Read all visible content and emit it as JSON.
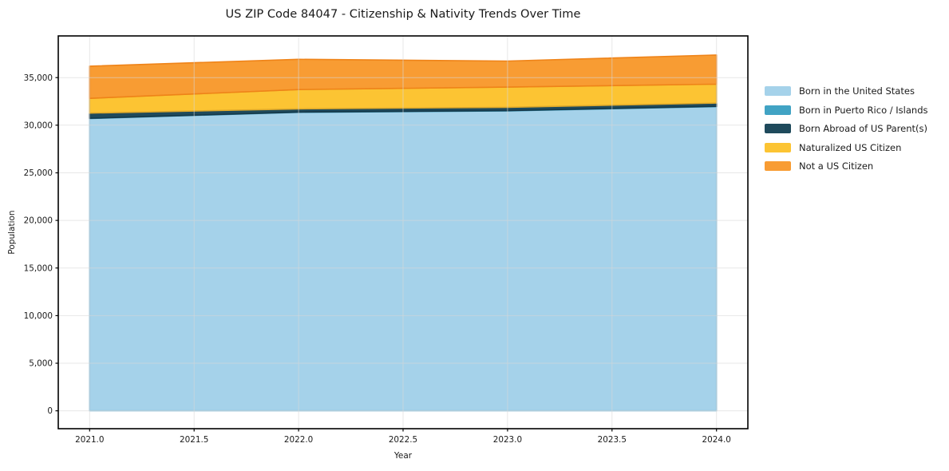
{
  "title": "US ZIP Code 84047 - Citizenship & Nativity Trends Over Time",
  "chart_data": {
    "type": "area",
    "stacked": true,
    "title": "US ZIP Code 84047 - Citizenship & Nativity Trends Over Time",
    "xlabel": "Year",
    "ylabel": "Population",
    "grid": true,
    "legend_position": "right-outside",
    "x": [
      2021,
      2022,
      2023,
      2024
    ],
    "xlim": [
      2020.85,
      2024.15
    ],
    "ylim": [
      -1875,
      39375
    ],
    "x_ticks": [
      2021.0,
      2021.5,
      2022.0,
      2022.5,
      2023.0,
      2023.5,
      2024.0
    ],
    "x_tick_labels": [
      "2021.0",
      "2021.5",
      "2022.0",
      "2022.5",
      "2023.0",
      "2023.5",
      "2024.0"
    ],
    "y_ticks": [
      0,
      5000,
      10000,
      15000,
      20000,
      25000,
      30000,
      35000
    ],
    "y_tick_labels": [
      "0",
      "5,000",
      "10,000",
      "15,000",
      "20,000",
      "25,000",
      "30,000",
      "35,000"
    ],
    "colors": {
      "axis": "#000000",
      "text": "#1a1a1a",
      "grid": "#d7d7d7",
      "background": "#ffffff"
    },
    "series": [
      {
        "key": "born-us",
        "name": "Born in the United States",
        "color": "#a5d2ea",
        "edge": "#8cc3de",
        "values": [
          30700,
          31350,
          31500,
          31950
        ]
      },
      {
        "key": "born-pr-islands",
        "name": "Born in Puerto Rico / Islands",
        "color": "#41a3c4",
        "edge": "#2f8fae",
        "values": [
          30,
          30,
          30,
          30
        ]
      },
      {
        "key": "born-abroad",
        "name": "Born Abroad of US Parent(s)",
        "color": "#1f4a5c",
        "edge": "#16394a",
        "values": [
          540,
          330,
          350,
          340
        ]
      },
      {
        "key": "naturalized",
        "name": "Naturalized US Citizen",
        "color": "#fcc433",
        "edge": "#dfa92a",
        "values": [
          1550,
          2030,
          2120,
          1990
        ]
      },
      {
        "key": "not-citizen",
        "name": "Not a US Citizen",
        "color": "#f89c33",
        "edge": "#ef8318",
        "values": [
          3380,
          3180,
          2730,
          3060
        ]
      }
    ]
  }
}
